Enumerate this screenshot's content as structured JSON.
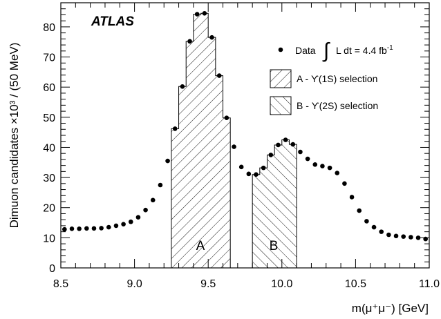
{
  "chart_data": {
    "type": "scatter",
    "experiment_label": "ATLAS",
    "xlabel_html": "m(μ⁺μ⁻) [GeV]",
    "ylabel": "Dimuon candidates ×10³ / (50 MeV)",
    "xlim": [
      8.5,
      11.0
    ],
    "ylim": [
      0,
      88
    ],
    "x_ticks": [
      "8.5",
      "9.0",
      "9.5",
      "10.0",
      "10.5",
      "11.0"
    ],
    "y_ticks": [
      "0",
      "10",
      "20",
      "30",
      "40",
      "50",
      "60",
      "70",
      "80"
    ],
    "legend": {
      "data_label": "Data",
      "lumi_label": "L dt = 4.4 fb",
      "lumi_exponent": "-1",
      "region_a_label": "A - ϒ(1S) selection",
      "region_b_label": "B - ϒ(2S) selection"
    },
    "region_labels": {
      "a": "A",
      "b": "B"
    },
    "series": [
      {
        "name": "Data",
        "x": [
          8.525,
          8.575,
          8.625,
          8.675,
          8.725,
          8.775,
          8.825,
          8.875,
          8.925,
          8.975,
          9.025,
          9.075,
          9.125,
          9.175,
          9.225,
          9.275,
          9.325,
          9.375,
          9.425,
          9.475,
          9.525,
          9.575,
          9.625,
          9.675,
          9.725,
          9.775,
          9.825,
          9.875,
          9.925,
          9.975,
          10.025,
          10.075,
          10.125,
          10.175,
          10.225,
          10.275,
          10.325,
          10.375,
          10.425,
          10.475,
          10.525,
          10.575,
          10.625,
          10.675,
          10.725,
          10.775,
          10.825,
          10.875,
          10.925,
          10.975
        ],
        "y": [
          12.8,
          13.0,
          13.0,
          13.1,
          13.1,
          13.2,
          13.5,
          14.0,
          14.5,
          15.3,
          16.8,
          19.2,
          22.5,
          27.5,
          35.5,
          46.2,
          60.2,
          75.2,
          84.2,
          84.5,
          76.5,
          63.8,
          49.8,
          40.2,
          33.5,
          31.2,
          31.0,
          33.2,
          37.5,
          40.8,
          42.5,
          41.0,
          38.5,
          36.2,
          34.3,
          33.8,
          33.2,
          31.5,
          28.0,
          23.5,
          19.0,
          15.5,
          13.5,
          12.0,
          11.0,
          10.6,
          10.4,
          10.2,
          10.0,
          9.6
        ]
      }
    ],
    "region_a": {
      "name": "A - ϒ(1S) selection",
      "x_range": [
        9.25,
        9.65
      ],
      "bins": [
        {
          "x0": 9.25,
          "x1": 9.3,
          "y": 46.2
        },
        {
          "x0": 9.3,
          "x1": 9.35,
          "y": 60.2
        },
        {
          "x0": 9.35,
          "x1": 9.4,
          "y": 75.2
        },
        {
          "x0": 9.4,
          "x1": 9.45,
          "y": 84.2
        },
        {
          "x0": 9.45,
          "x1": 9.5,
          "y": 84.5
        },
        {
          "x0": 9.5,
          "x1": 9.55,
          "y": 76.5
        },
        {
          "x0": 9.55,
          "x1": 9.6,
          "y": 63.8
        },
        {
          "x0": 9.6,
          "x1": 9.65,
          "y": 49.8
        }
      ]
    },
    "region_b": {
      "name": "B - ϒ(2S) selection",
      "x_range": [
        9.8,
        10.1
      ],
      "bins": [
        {
          "x0": 9.8,
          "x1": 9.85,
          "y": 31.0
        },
        {
          "x0": 9.85,
          "x1": 9.9,
          "y": 33.2
        },
        {
          "x0": 9.9,
          "x1": 9.95,
          "y": 37.5
        },
        {
          "x0": 9.95,
          "x1": 10.0,
          "y": 40.8
        },
        {
          "x0": 10.0,
          "x1": 10.05,
          "y": 42.5
        },
        {
          "x0": 10.05,
          "x1": 10.1,
          "y": 41.0
        }
      ]
    }
  }
}
